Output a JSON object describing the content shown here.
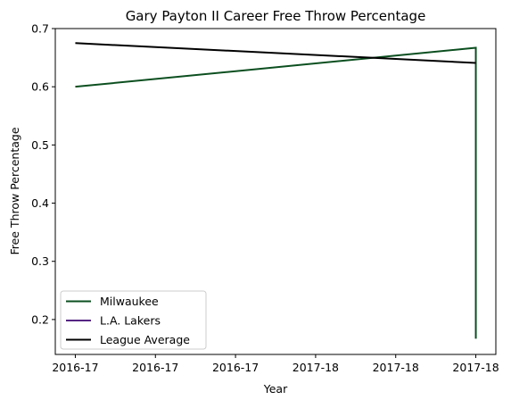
{
  "chart_data": {
    "type": "line",
    "title": "Gary Payton II Career Free Throw Percentage",
    "xlabel": "Year",
    "ylabel": "Free Throw Percentage",
    "x_ticks": [
      {
        "pos": 0.0,
        "label": "2016-17"
      },
      {
        "pos": 0.2,
        "label": "2016-17"
      },
      {
        "pos": 0.4,
        "label": "2016-17"
      },
      {
        "pos": 0.6,
        "label": "2017-18"
      },
      {
        "pos": 0.8,
        "label": "2017-18"
      },
      {
        "pos": 1.0,
        "label": "2017-18"
      }
    ],
    "xlim": [
      -0.05,
      1.05
    ],
    "ylim": [
      0.14,
      0.7
    ],
    "y_ticks": [
      0.2,
      0.3,
      0.4,
      0.5,
      0.6,
      0.7
    ],
    "grid": false,
    "legend_position": "lower-left",
    "series": [
      {
        "name": "Milwaukee",
        "color": "#0b4f1f",
        "points": [
          {
            "x": 0.0,
            "y": 0.6
          },
          {
            "x": 1.0,
            "y": 0.667
          },
          {
            "x": 1.0,
            "y": 0.167
          }
        ]
      },
      {
        "name": "L.A. Lakers",
        "color": "#552583",
        "points": []
      },
      {
        "name": "League Average",
        "color": "#000000",
        "points": [
          {
            "x": 0.0,
            "y": 0.675
          },
          {
            "x": 1.0,
            "y": 0.641
          }
        ]
      }
    ]
  }
}
